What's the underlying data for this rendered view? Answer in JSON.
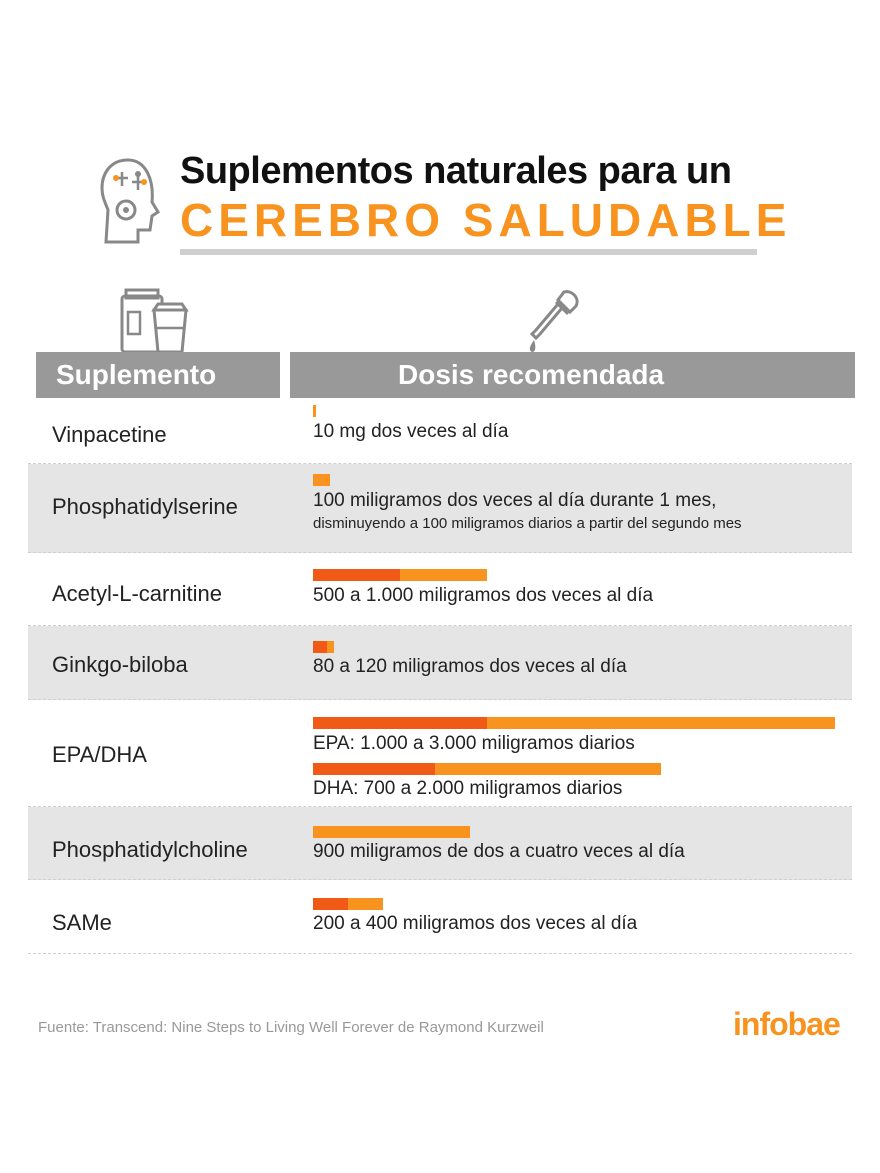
{
  "header": {
    "title_line1": "Suplementos naturales para un",
    "title_line2": "CEREBRO SALUDABLE",
    "icon": "brain-gear-head-icon"
  },
  "columns": {
    "supplement": "Suplemento",
    "dose": "Dosis recomendada",
    "supplement_icon": "supplement-jars-icon",
    "dose_icon": "dropper-icon"
  },
  "rows": [
    {
      "name": "Vinpacetine",
      "dose": "10 mg dos veces al día",
      "dose_sub": ""
    },
    {
      "name": "Phosphatidylserine",
      "dose": "100 miligramos dos veces al día durante 1 mes,",
      "dose_sub": "disminuyendo a 100 miligramos diarios a partir del segundo mes"
    },
    {
      "name": "Acetyl-L-carnitine",
      "dose": "500 a 1.000 miligramos dos veces al día",
      "dose_sub": ""
    },
    {
      "name": "Ginkgo-biloba",
      "dose": "80 a 120 miligramos dos veces al día",
      "dose_sub": ""
    },
    {
      "name": "EPA/DHA",
      "dose": "EPA: 1.000 a 3.000 miligramos diarios",
      "dose_sub": "DHA: 700 a 2.000 miligramos diarios"
    },
    {
      "name": "Phosphatidylcholine",
      "dose": "900 miligramos de dos a cuatro veces al día",
      "dose_sub": ""
    },
    {
      "name": "SAMe",
      "dose": "200 a 400 miligramos dos veces al día",
      "dose_sub": ""
    }
  ],
  "chart_data": {
    "type": "bar",
    "orientation": "horizontal",
    "unit": "mg",
    "colors": {
      "min": "#f05a16",
      "max": "#f7931e"
    },
    "bars": [
      {
        "supplement": "Vinpacetine",
        "min": 10,
        "max": 10
      },
      {
        "supplement": "Phosphatidylserine",
        "min": 100,
        "max": 100
      },
      {
        "supplement": "Acetyl-L-carnitine",
        "min": 500,
        "max": 1000
      },
      {
        "supplement": "Ginkgo-biloba",
        "min": 80,
        "max": 120
      },
      {
        "supplement": "EPA",
        "min": 1000,
        "max": 3000
      },
      {
        "supplement": "DHA",
        "min": 700,
        "max": 2000
      },
      {
        "supplement": "Phosphatidylcholine",
        "min": 900,
        "max": 900
      },
      {
        "supplement": "SAMe",
        "min": 200,
        "max": 400
      }
    ],
    "xlim": [
      0,
      3000
    ]
  },
  "footer": {
    "source": "Fuente: Transcend: Nine Steps to Living Well Forever de Raymond Kurzweil",
    "logo": "infobae"
  }
}
